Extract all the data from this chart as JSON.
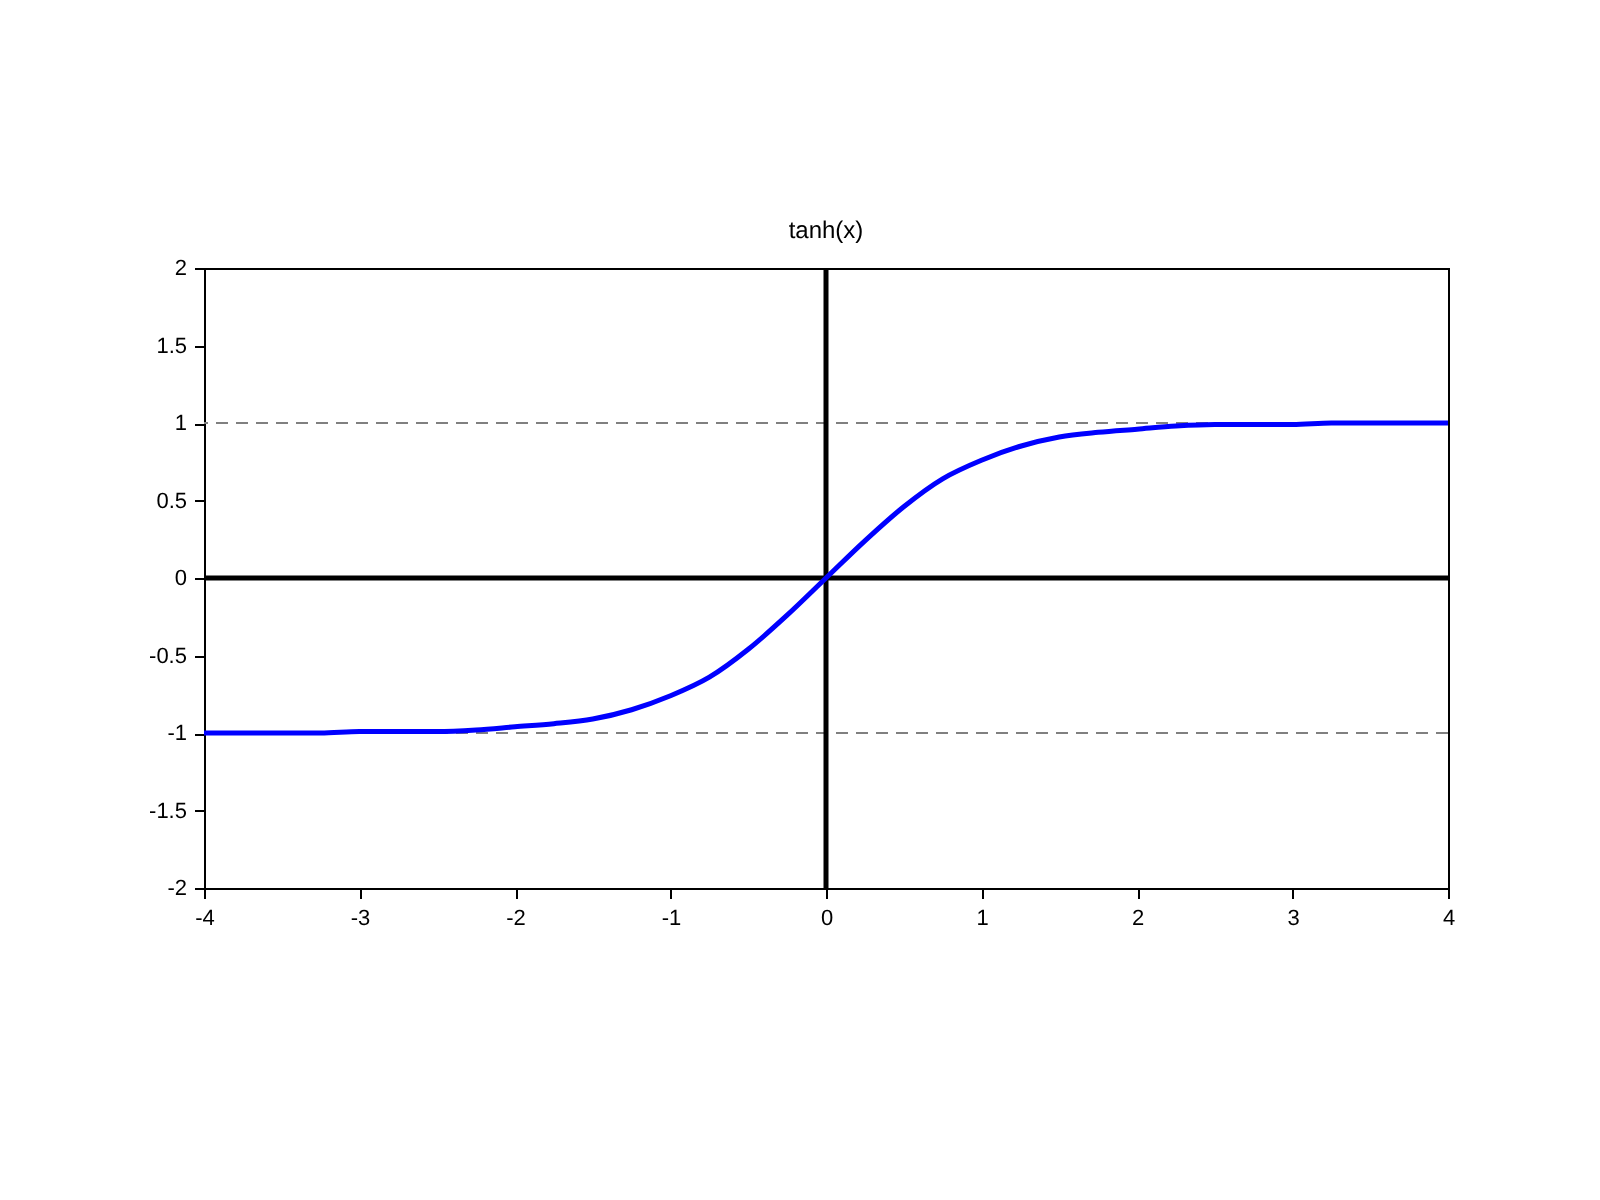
{
  "chart_data": {
    "type": "line",
    "title": "tanh(x)",
    "x": [
      -4,
      -3.75,
      -3.5,
      -3.25,
      -3,
      -2.75,
      -2.5,
      -2.25,
      -2,
      -1.75,
      -1.5,
      -1.25,
      -1,
      -0.75,
      -0.5,
      -0.25,
      0,
      0.25,
      0.5,
      0.75,
      1,
      1.25,
      1.5,
      1.75,
      2,
      2.25,
      2.5,
      2.75,
      3,
      3.25,
      3.5,
      3.75,
      4
    ],
    "series": [
      {
        "color": "#0000ff",
        "values": [
          -1.0,
          -1.0,
          -1.0,
          -1.0,
          -0.99,
          -0.99,
          -0.99,
          -0.98,
          -0.96,
          -0.94,
          -0.91,
          -0.85,
          -0.76,
          -0.64,
          -0.46,
          -0.24,
          0,
          0.24,
          0.46,
          0.64,
          0.76,
          0.85,
          0.91,
          0.94,
          0.96,
          0.98,
          0.99,
          0.99,
          0.99,
          1.0,
          1.0,
          1.0,
          1.0
        ]
      }
    ],
    "xlim": [
      -4,
      4
    ],
    "ylim": [
      -2,
      2
    ],
    "xticks": [
      -4,
      -3,
      -2,
      -1,
      0,
      1,
      2,
      3,
      4
    ],
    "yticks": [
      -2,
      -1.5,
      -1,
      -0.5,
      0,
      0.5,
      1,
      1.5,
      2
    ],
    "ref_lines": [
      {
        "axis": "y",
        "value": 1,
        "color": "#808080",
        "line_style": "dashed"
      },
      {
        "axis": "y",
        "value": -1,
        "color": "#808080",
        "line_style": "dashed"
      },
      {
        "axis": "y",
        "value": 0,
        "color": "#000000",
        "line_style": "solid"
      },
      {
        "axis": "x",
        "value": 0,
        "color": "#000000",
        "line_style": "solid"
      }
    ],
    "grid": false,
    "marker": "none",
    "line_style": "solid"
  }
}
